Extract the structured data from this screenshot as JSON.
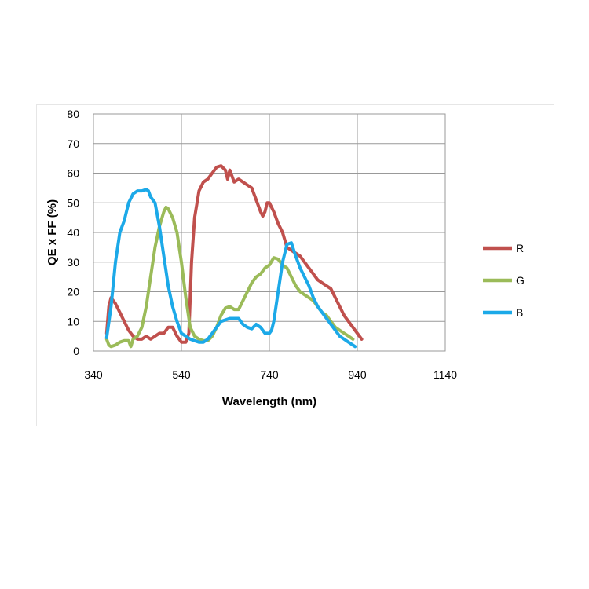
{
  "chart_data": {
    "type": "line",
    "title": "",
    "xlabel": "Wavelength (nm)",
    "ylabel": "QE x FF (%)",
    "xlim": [
      340,
      1140
    ],
    "ylim": [
      0,
      80
    ],
    "x_ticks": [
      340,
      540,
      740,
      940,
      1140
    ],
    "y_ticks": [
      0,
      10,
      20,
      30,
      40,
      50,
      60,
      70,
      80
    ],
    "grid": true,
    "legend_position": "right",
    "series": [
      {
        "name": "R",
        "color": "#c0504d",
        "points": [
          [
            370,
            6
          ],
          [
            375,
            15
          ],
          [
            380,
            18
          ],
          [
            390,
            16
          ],
          [
            400,
            13
          ],
          [
            410,
            10
          ],
          [
            420,
            7
          ],
          [
            430,
            5
          ],
          [
            440,
            4
          ],
          [
            450,
            4
          ],
          [
            460,
            5
          ],
          [
            470,
            4
          ],
          [
            480,
            5
          ],
          [
            490,
            6
          ],
          [
            500,
            6
          ],
          [
            510,
            8
          ],
          [
            520,
            8
          ],
          [
            530,
            5
          ],
          [
            540,
            3
          ],
          [
            550,
            3
          ],
          [
            557,
            6
          ],
          [
            563,
            30
          ],
          [
            570,
            45
          ],
          [
            580,
            54
          ],
          [
            590,
            57
          ],
          [
            600,
            58
          ],
          [
            610,
            60
          ],
          [
            620,
            62
          ],
          [
            630,
            62.5
          ],
          [
            640,
            61
          ],
          [
            645,
            58
          ],
          [
            650,
            61
          ],
          [
            655,
            59
          ],
          [
            660,
            57
          ],
          [
            670,
            58
          ],
          [
            680,
            57
          ],
          [
            690,
            56
          ],
          [
            700,
            55
          ],
          [
            710,
            51
          ],
          [
            720,
            47
          ],
          [
            725,
            45.5
          ],
          [
            730,
            47
          ],
          [
            735,
            50
          ],
          [
            740,
            50
          ],
          [
            750,
            47
          ],
          [
            760,
            43
          ],
          [
            770,
            40
          ],
          [
            780,
            35
          ],
          [
            790,
            34
          ],
          [
            800,
            33
          ],
          [
            810,
            32
          ],
          [
            820,
            30
          ],
          [
            830,
            28
          ],
          [
            840,
            26
          ],
          [
            850,
            24
          ],
          [
            860,
            23
          ],
          [
            870,
            22
          ],
          [
            880,
            21
          ],
          [
            890,
            18
          ],
          [
            900,
            15
          ],
          [
            910,
            12
          ],
          [
            920,
            10
          ],
          [
            930,
            8
          ],
          [
            940,
            6
          ],
          [
            950,
            4
          ]
        ]
      },
      {
        "name": "G",
        "color": "#9bbb59",
        "points": [
          [
            370,
            4
          ],
          [
            375,
            2
          ],
          [
            380,
            1.5
          ],
          [
            390,
            2
          ],
          [
            400,
            3
          ],
          [
            410,
            3.5
          ],
          [
            420,
            3.5
          ],
          [
            425,
            1.5
          ],
          [
            430,
            4
          ],
          [
            440,
            5
          ],
          [
            450,
            8
          ],
          [
            460,
            15
          ],
          [
            470,
            25
          ],
          [
            480,
            35
          ],
          [
            490,
            42
          ],
          [
            500,
            47
          ],
          [
            505,
            48.5
          ],
          [
            510,
            48
          ],
          [
            520,
            45
          ],
          [
            530,
            40
          ],
          [
            540,
            30
          ],
          [
            550,
            18
          ],
          [
            560,
            8
          ],
          [
            570,
            5
          ],
          [
            580,
            4
          ],
          [
            590,
            3.5
          ],
          [
            600,
            3.5
          ],
          [
            610,
            5
          ],
          [
            620,
            8
          ],
          [
            630,
            12
          ],
          [
            640,
            14.5
          ],
          [
            650,
            15
          ],
          [
            660,
            14
          ],
          [
            670,
            14
          ],
          [
            680,
            17
          ],
          [
            690,
            20
          ],
          [
            700,
            23
          ],
          [
            710,
            25
          ],
          [
            720,
            26
          ],
          [
            730,
            28
          ],
          [
            740,
            29
          ],
          [
            750,
            31.5
          ],
          [
            760,
            31
          ],
          [
            770,
            29
          ],
          [
            780,
            28
          ],
          [
            790,
            25
          ],
          [
            800,
            22
          ],
          [
            810,
            20
          ],
          [
            820,
            19
          ],
          [
            830,
            18
          ],
          [
            840,
            17
          ],
          [
            850,
            15
          ],
          [
            860,
            13
          ],
          [
            870,
            12
          ],
          [
            880,
            10
          ],
          [
            890,
            8
          ],
          [
            900,
            7
          ],
          [
            910,
            6
          ],
          [
            920,
            5
          ],
          [
            930,
            4
          ]
        ]
      },
      {
        "name": "B",
        "color": "#1ca9e8",
        "points": [
          [
            370,
            4.5
          ],
          [
            380,
            15
          ],
          [
            390,
            30
          ],
          [
            400,
            40
          ],
          [
            410,
            44
          ],
          [
            420,
            50
          ],
          [
            430,
            53
          ],
          [
            440,
            54
          ],
          [
            450,
            54
          ],
          [
            460,
            54.5
          ],
          [
            465,
            54
          ],
          [
            470,
            52
          ],
          [
            480,
            50
          ],
          [
            490,
            42
          ],
          [
            500,
            32
          ],
          [
            510,
            22
          ],
          [
            520,
            15
          ],
          [
            530,
            10
          ],
          [
            540,
            6
          ],
          [
            550,
            5
          ],
          [
            560,
            4
          ],
          [
            570,
            3.5
          ],
          [
            580,
            3
          ],
          [
            590,
            3
          ],
          [
            600,
            4
          ],
          [
            610,
            6
          ],
          [
            620,
            8
          ],
          [
            630,
            10
          ],
          [
            640,
            10.5
          ],
          [
            650,
            11
          ],
          [
            660,
            11
          ],
          [
            670,
            11
          ],
          [
            680,
            9
          ],
          [
            690,
            8
          ],
          [
            700,
            7.5
          ],
          [
            710,
            9
          ],
          [
            720,
            8
          ],
          [
            730,
            6
          ],
          [
            740,
            6
          ],
          [
            745,
            7
          ],
          [
            750,
            10
          ],
          [
            760,
            20
          ],
          [
            770,
            30
          ],
          [
            780,
            36
          ],
          [
            790,
            36.5
          ],
          [
            800,
            32
          ],
          [
            810,
            28
          ],
          [
            820,
            25
          ],
          [
            830,
            22
          ],
          [
            840,
            18
          ],
          [
            850,
            15
          ],
          [
            860,
            13
          ],
          [
            870,
            11
          ],
          [
            880,
            9
          ],
          [
            890,
            7
          ],
          [
            900,
            5
          ],
          [
            910,
            4
          ],
          [
            920,
            3
          ],
          [
            930,
            2
          ],
          [
            935,
            1.5
          ]
        ]
      }
    ]
  }
}
